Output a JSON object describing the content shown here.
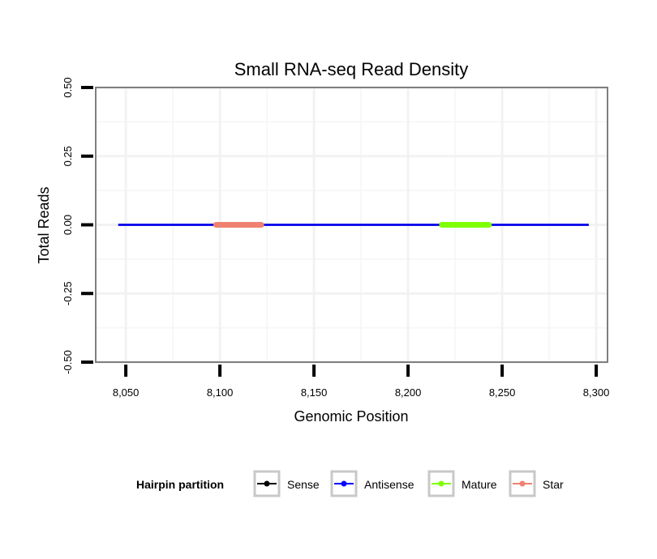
{
  "chart_data": {
    "type": "line",
    "title": "Small RNA-seq Read Density",
    "xlabel": "Genomic Position",
    "ylabel": "Total Reads",
    "xlim": [
      8034,
      8306
    ],
    "ylim": [
      -0.5,
      0.5
    ],
    "x_ticks": [
      8050,
      8100,
      8150,
      8200,
      8250,
      8300
    ],
    "x_tick_labels": [
      "8,050",
      "8,100",
      "8,150",
      "8,200",
      "8,250",
      "8,300"
    ],
    "y_ticks": [
      -0.5,
      -0.25,
      0,
      0.25,
      0.5
    ],
    "y_tick_labels": [
      "-0.50",
      "-0.25",
      "0.00",
      "0.25",
      "0.50"
    ],
    "grid": true,
    "series": [
      {
        "name": "Sense",
        "color": "#000000",
        "x": [
          8046,
          8296
        ],
        "y": [
          0,
          0
        ]
      },
      {
        "name": "Antisense",
        "color": "#0000ff",
        "x": [
          8046,
          8296
        ],
        "y": [
          0,
          0
        ]
      },
      {
        "name": "Mature",
        "color": "#7fff00",
        "x": [
          8218,
          8243
        ],
        "y": [
          0,
          0
        ]
      },
      {
        "name": "Star",
        "color": "#f08070",
        "x": [
          8098,
          8122
        ],
        "y": [
          0,
          0
        ]
      }
    ],
    "legend": {
      "title": "Hairpin partition",
      "position": "bottom",
      "entries": [
        "Sense",
        "Antisense",
        "Mature",
        "Star"
      ]
    }
  }
}
